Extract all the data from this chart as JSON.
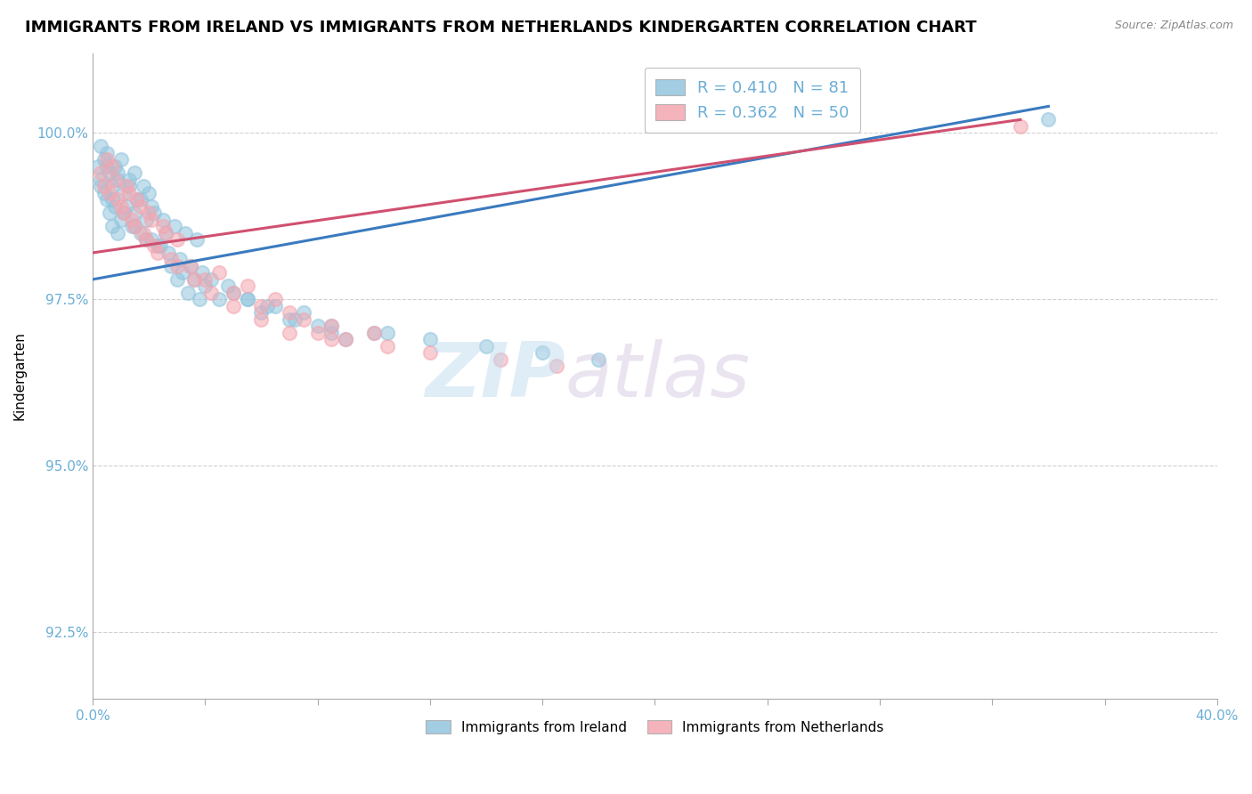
{
  "title": "IMMIGRANTS FROM IRELAND VS IMMIGRANTS FROM NETHERLANDS KINDERGARTEN CORRELATION CHART",
  "source": "Source: ZipAtlas.com",
  "ylabel": "Kindergarten",
  "ylabel_ticks": [
    "92.5%",
    "95.0%",
    "97.5%",
    "100.0%"
  ],
  "ylabel_tick_vals": [
    92.5,
    95.0,
    97.5,
    100.0
  ],
  "xlim": [
    0.0,
    40.0
  ],
  "ylim": [
    91.5,
    101.2
  ],
  "legend_ireland": "Immigrants from Ireland",
  "legend_netherlands": "Immigrants from Netherlands",
  "ireland_color": "#92c5de",
  "netherlands_color": "#f4a6b0",
  "ireland_R": 0.41,
  "ireland_N": 81,
  "netherlands_R": 0.362,
  "netherlands_N": 50,
  "ireland_scatter_x": [
    0.2,
    0.3,
    0.3,
    0.4,
    0.4,
    0.5,
    0.5,
    0.6,
    0.6,
    0.7,
    0.7,
    0.8,
    0.8,
    0.9,
    0.9,
    1.0,
    1.0,
    1.1,
    1.2,
    1.3,
    1.4,
    1.5,
    1.5,
    1.6,
    1.7,
    1.8,
    1.9,
    2.0,
    2.1,
    2.2,
    2.4,
    2.6,
    2.8,
    3.0,
    3.2,
    3.4,
    3.6,
    3.8,
    4.0,
    4.5,
    5.0,
    5.5,
    6.0,
    6.5,
    7.0,
    7.5,
    8.0,
    8.5,
    9.0,
    10.0,
    0.3,
    0.5,
    0.7,
    0.9,
    1.1,
    1.3,
    1.5,
    1.7,
    1.9,
    2.1,
    2.3,
    2.5,
    2.7,
    2.9,
    3.1,
    3.3,
    3.5,
    3.7,
    3.9,
    4.2,
    4.8,
    5.5,
    6.2,
    7.2,
    8.5,
    10.5,
    12.0,
    14.0,
    16.0,
    18.0,
    34.0
  ],
  "ireland_scatter_y": [
    99.5,
    99.8,
    99.3,
    99.6,
    99.1,
    99.7,
    99.0,
    99.4,
    98.8,
    99.2,
    98.6,
    99.5,
    98.9,
    99.3,
    98.5,
    99.6,
    98.7,
    99.1,
    98.9,
    99.3,
    98.6,
    99.4,
    98.8,
    99.0,
    98.5,
    99.2,
    98.7,
    99.1,
    98.4,
    98.8,
    98.3,
    98.5,
    98.0,
    97.8,
    97.9,
    97.6,
    97.8,
    97.5,
    97.7,
    97.5,
    97.6,
    97.5,
    97.3,
    97.4,
    97.2,
    97.3,
    97.1,
    97.0,
    96.9,
    97.0,
    99.2,
    99.5,
    99.0,
    99.4,
    98.8,
    99.2,
    98.6,
    99.0,
    98.4,
    98.9,
    98.3,
    98.7,
    98.2,
    98.6,
    98.1,
    98.5,
    98.0,
    98.4,
    97.9,
    97.8,
    97.7,
    97.5,
    97.4,
    97.2,
    97.1,
    97.0,
    96.9,
    96.8,
    96.7,
    96.6,
    100.2
  ],
  "netherlands_scatter_x": [
    0.3,
    0.5,
    0.6,
    0.8,
    1.0,
    1.2,
    1.4,
    1.6,
    1.8,
    2.0,
    2.2,
    2.5,
    2.8,
    3.0,
    3.5,
    4.0,
    4.5,
    5.0,
    5.5,
    6.0,
    6.5,
    7.0,
    7.5,
    8.0,
    8.5,
    9.0,
    10.0,
    0.4,
    0.7,
    0.9,
    1.1,
    1.3,
    1.5,
    1.7,
    1.9,
    2.1,
    2.3,
    2.6,
    3.0,
    3.6,
    4.2,
    5.0,
    6.0,
    7.0,
    8.5,
    10.5,
    12.0,
    14.5,
    16.5,
    33.0
  ],
  "netherlands_scatter_y": [
    99.4,
    99.6,
    99.1,
    99.3,
    98.9,
    99.2,
    98.7,
    99.0,
    98.5,
    98.8,
    98.3,
    98.6,
    98.1,
    98.4,
    98.0,
    97.8,
    97.9,
    97.6,
    97.7,
    97.4,
    97.5,
    97.3,
    97.2,
    97.0,
    97.1,
    96.9,
    97.0,
    99.2,
    99.5,
    99.0,
    98.8,
    99.1,
    98.6,
    98.9,
    98.4,
    98.7,
    98.2,
    98.5,
    98.0,
    97.8,
    97.6,
    97.4,
    97.2,
    97.0,
    96.9,
    96.8,
    96.7,
    96.6,
    96.5,
    100.1
  ],
  "ireland_trend_x": [
    0.0,
    34.0
  ],
  "ireland_trend_y": [
    97.8,
    100.4
  ],
  "netherlands_trend_x": [
    0.0,
    33.0
  ],
  "netherlands_trend_y": [
    98.2,
    100.2
  ],
  "background_color": "#ffffff",
  "grid_color": "#d0d0d0",
  "tick_color": "#6baed6",
  "title_fontsize": 13,
  "axis_label_fontsize": 11,
  "tick_fontsize": 11,
  "legend_fontsize": 13,
  "scatter_size": 120,
  "scatter_alpha": 0.55,
  "scatter_linewidth": 1.5
}
